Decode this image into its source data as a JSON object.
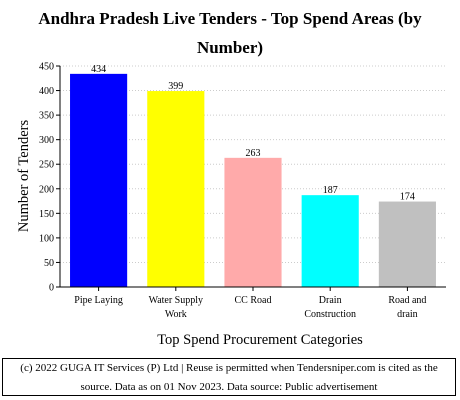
{
  "chart_data": {
    "type": "bar",
    "title": "Andhra Pradesh Live Tenders - Top Spend Areas (by Number)",
    "title_lines": [
      "Andhra Pradesh Live Tenders - Top Spend Areas (by",
      "Number)"
    ],
    "xlabel": "Top Spend Procurement Categories",
    "ylabel": "Number of Tenders",
    "categories": [
      [
        "Pipe Laying"
      ],
      [
        "Water Supply",
        "Work"
      ],
      [
        "CC Road"
      ],
      [
        "Drain",
        "Construction"
      ],
      [
        "Road and",
        "drain"
      ]
    ],
    "values": [
      434,
      399,
      263,
      187,
      174
    ],
    "colors": [
      "#0000ff",
      "#ffff00",
      "#ffaaaa",
      "#00ffff",
      "#c0c0c0"
    ],
    "ylim": [
      0,
      450
    ],
    "yticks": [
      0,
      50,
      100,
      150,
      200,
      250,
      300,
      350,
      400,
      450
    ],
    "grid": "horizontal dashed"
  },
  "footer": {
    "line1": "(c) 2022 GUGA IT Services (P) Ltd | Reuse is permitted when Tendersniper.com is cited as the",
    "line2": "source. Data as on 01 Nov 2023. Data source: Public advertisement"
  }
}
